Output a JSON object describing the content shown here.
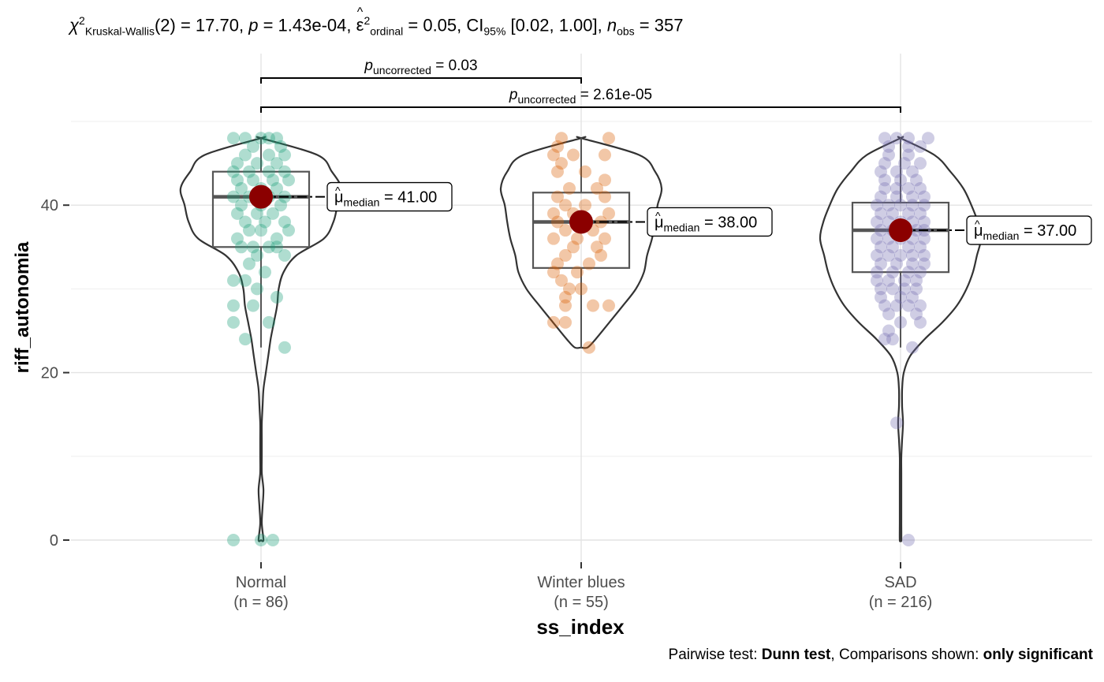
{
  "subtitle": {
    "chi": "χ",
    "chi_sup": "2",
    "test_sub": "Kruskal-Wallis",
    "stat": "(2) = 17.70, ",
    "p_sym": "p",
    "p_val": " = 1.43e-04, ",
    "eps": "ε",
    "eps_sup": "2",
    "eps_sub": "ordinal",
    "eps_val": " = 0.05, CI",
    "ci_sub": "95%",
    "ci_val": " [0.02, 1.00], ",
    "n_sym": "n",
    "n_sub": "obs",
    "n_val": " = 357"
  },
  "caption": {
    "prefix": "Pairwise test: ",
    "test": "Dunn test",
    "mid": ", Comparisons shown: ",
    "shown": "only significant"
  },
  "axes": {
    "ylabel": "riff_autonomia",
    "xlabel": "ss_index"
  },
  "chart_data": {
    "type": "violin-box-scatter",
    "x_label": "ss_index",
    "y_label": "riff_autonomia",
    "ylim": [
      0,
      50
    ],
    "y_ticks": [
      0,
      20,
      40
    ],
    "y_tick_labels": [
      "0",
      "20",
      "40"
    ],
    "grid": true,
    "categories": [
      {
        "name": "Normal",
        "n_label": "(n = 86)",
        "color": "#1B9E77",
        "median": 41,
        "q1": 35,
        "q3": 44,
        "whisker_low": 23,
        "whisker_high": 48,
        "label": "41.00",
        "violin": [
          [
            0,
            3
          ],
          [
            2,
            1
          ],
          [
            4,
            2
          ],
          [
            6,
            3
          ],
          [
            8,
            1
          ],
          [
            10,
            1
          ],
          [
            12,
            1
          ],
          [
            14,
            1
          ],
          [
            16,
            2
          ],
          [
            18,
            3
          ],
          [
            20,
            6
          ],
          [
            22,
            9
          ],
          [
            24,
            12
          ],
          [
            26,
            16
          ],
          [
            28,
            20
          ],
          [
            30,
            22
          ],
          [
            32,
            28
          ],
          [
            34,
            44
          ],
          [
            36,
            78
          ],
          [
            38,
            90
          ],
          [
            40,
            95
          ],
          [
            42,
            100
          ],
          [
            44,
            88
          ],
          [
            46,
            70
          ],
          [
            48,
            0
          ]
        ],
        "points": [
          [
            0,
            -0.07
          ],
          [
            0,
            0.0
          ],
          [
            0,
            0.03
          ],
          [
            23,
            0.06
          ],
          [
            24,
            -0.04
          ],
          [
            26,
            -0.07
          ],
          [
            26,
            0.02
          ],
          [
            28,
            -0.07
          ],
          [
            28,
            -0.02
          ],
          [
            29,
            0.04
          ],
          [
            30,
            -0.01
          ],
          [
            31,
            -0.07
          ],
          [
            31,
            -0.04
          ],
          [
            32,
            0.01
          ],
          [
            33,
            -0.03
          ],
          [
            34,
            -0.01
          ],
          [
            34,
            0.06
          ],
          [
            35,
            -0.05
          ],
          [
            35,
            -0.02
          ],
          [
            35,
            0.02
          ],
          [
            35,
            0.04
          ],
          [
            36,
            -0.06
          ],
          [
            36,
            0.04
          ],
          [
            37,
            -0.03
          ],
          [
            37,
            0.0
          ],
          [
            37,
            0.07
          ],
          [
            38,
            -0.04
          ],
          [
            38,
            0.01
          ],
          [
            38,
            0.06
          ],
          [
            39,
            -0.06
          ],
          [
            39,
            -0.01
          ],
          [
            39,
            0.03
          ],
          [
            40,
            -0.05
          ],
          [
            40,
            0.0
          ],
          [
            40,
            0.05
          ],
          [
            41,
            -0.07
          ],
          [
            41,
            -0.03
          ],
          [
            41,
            0.02
          ],
          [
            41,
            0.06
          ],
          [
            42,
            -0.05
          ],
          [
            42,
            0.0
          ],
          [
            42,
            0.04
          ],
          [
            43,
            -0.06
          ],
          [
            43,
            -0.02
          ],
          [
            43,
            0.03
          ],
          [
            43,
            0.07
          ],
          [
            44,
            -0.07
          ],
          [
            44,
            -0.03
          ],
          [
            44,
            0.02
          ],
          [
            44,
            0.06
          ],
          [
            45,
            -0.06
          ],
          [
            45,
            -0.01
          ],
          [
            45,
            0.04
          ],
          [
            46,
            -0.04
          ],
          [
            46,
            0.02
          ],
          [
            46,
            0.06
          ],
          [
            47,
            -0.02
          ],
          [
            47,
            0.05
          ],
          [
            48,
            -0.07
          ],
          [
            48,
            -0.04
          ],
          [
            48,
            0.0
          ],
          [
            48,
            0.02
          ],
          [
            48,
            0.04
          ]
        ]
      },
      {
        "name": "Winter blues",
        "n_label": "(n = 55)",
        "color": "#D95F02",
        "median": 38,
        "q1": 32.5,
        "q3": 41.5,
        "whisker_low": 23,
        "whisker_high": 48,
        "label": "38.00",
        "violin": [
          [
            23,
            8
          ],
          [
            24,
            18
          ],
          [
            26,
            35
          ],
          [
            28,
            52
          ],
          [
            30,
            68
          ],
          [
            32,
            78
          ],
          [
            34,
            82
          ],
          [
            36,
            88
          ],
          [
            38,
            92
          ],
          [
            40,
            95
          ],
          [
            42,
            100
          ],
          [
            44,
            92
          ],
          [
            46,
            72
          ],
          [
            48,
            0
          ]
        ],
        "points": [
          [
            23,
            0.02
          ],
          [
            26,
            -0.07
          ],
          [
            26,
            -0.04
          ],
          [
            28,
            -0.04
          ],
          [
            28,
            0.03
          ],
          [
            28,
            0.07
          ],
          [
            29,
            -0.04
          ],
          [
            30,
            -0.03
          ],
          [
            30,
            0.0
          ],
          [
            31,
            -0.05
          ],
          [
            32,
            -0.07
          ],
          [
            32,
            -0.01
          ],
          [
            33,
            -0.06
          ],
          [
            33,
            0.02
          ],
          [
            34,
            -0.04
          ],
          [
            34,
            0.05
          ],
          [
            35,
            -0.02
          ],
          [
            35,
            0.04
          ],
          [
            36,
            -0.07
          ],
          [
            36,
            -0.01
          ],
          [
            36,
            0.06
          ],
          [
            37,
            -0.04
          ],
          [
            37,
            0.03
          ],
          [
            38,
            -0.06
          ],
          [
            38,
            0.0
          ],
          [
            38,
            0.05
          ],
          [
            39,
            -0.07
          ],
          [
            39,
            -0.02
          ],
          [
            39,
            0.07
          ],
          [
            40,
            -0.04
          ],
          [
            40,
            0.01
          ],
          [
            41,
            -0.06
          ],
          [
            41,
            0.06
          ],
          [
            42,
            -0.03
          ],
          [
            42,
            0.04
          ],
          [
            43,
            0.06
          ],
          [
            44,
            -0.06
          ],
          [
            44,
            0.01
          ],
          [
            45,
            -0.05
          ],
          [
            46,
            -0.07
          ],
          [
            46,
            -0.02
          ],
          [
            46,
            0.06
          ],
          [
            47,
            -0.06
          ],
          [
            48,
            -0.05
          ],
          [
            48,
            0.07
          ]
        ]
      },
      {
        "name": "SAD",
        "n_label": "(n = 216)",
        "color": "#7570B3",
        "median": 37,
        "q1": 32,
        "q3": 40.3,
        "whisker_low": 23,
        "whisker_high": 48,
        "label": "37.00",
        "violin": [
          [
            0,
            1
          ],
          [
            2,
            1
          ],
          [
            4,
            1
          ],
          [
            6,
            1
          ],
          [
            8,
            1
          ],
          [
            10,
            1
          ],
          [
            12,
            2
          ],
          [
            14,
            3
          ],
          [
            16,
            2
          ],
          [
            18,
            2
          ],
          [
            20,
            4
          ],
          [
            22,
            12
          ],
          [
            24,
            30
          ],
          [
            26,
            52
          ],
          [
            28,
            70
          ],
          [
            30,
            82
          ],
          [
            32,
            90
          ],
          [
            34,
            95
          ],
          [
            36,
            100
          ],
          [
            38,
            96
          ],
          [
            40,
            88
          ],
          [
            42,
            78
          ],
          [
            44,
            62
          ],
          [
            46,
            42
          ],
          [
            48,
            0
          ]
        ],
        "points": [
          [
            0,
            0.02
          ],
          [
            14,
            -0.01
          ],
          [
            23,
            0.03
          ],
          [
            24,
            -0.04
          ],
          [
            24,
            -0.02
          ],
          [
            25,
            -0.03
          ],
          [
            26,
            0.0
          ],
          [
            26,
            0.05
          ],
          [
            27,
            -0.03
          ],
          [
            27,
            0.04
          ],
          [
            28,
            -0.04
          ],
          [
            28,
            -0.01
          ],
          [
            28,
            0.02
          ],
          [
            28,
            0.05
          ],
          [
            29,
            -0.05
          ],
          [
            29,
            0.0
          ],
          [
            29,
            0.03
          ],
          [
            30,
            -0.05
          ],
          [
            30,
            -0.02
          ],
          [
            30,
            0.01
          ],
          [
            30,
            0.04
          ],
          [
            31,
            -0.06
          ],
          [
            31,
            -0.03
          ],
          [
            31,
            0.01
          ],
          [
            31,
            0.04
          ],
          [
            32,
            -0.06
          ],
          [
            32,
            -0.02
          ],
          [
            32,
            0.02
          ],
          [
            32,
            0.05
          ],
          [
            33,
            -0.05
          ],
          [
            33,
            -0.01
          ],
          [
            33,
            0.03
          ],
          [
            33,
            0.06
          ],
          [
            34,
            -0.06
          ],
          [
            34,
            -0.03
          ],
          [
            34,
            0.0
          ],
          [
            34,
            0.03
          ],
          [
            34,
            0.06
          ],
          [
            35,
            -0.05
          ],
          [
            35,
            -0.02
          ],
          [
            35,
            0.02
          ],
          [
            35,
            0.05
          ],
          [
            36,
            -0.06
          ],
          [
            36,
            -0.03
          ],
          [
            36,
            0.0
          ],
          [
            36,
            0.03
          ],
          [
            36,
            0.06
          ],
          [
            37,
            -0.05
          ],
          [
            37,
            -0.02
          ],
          [
            37,
            0.01
          ],
          [
            37,
            0.04
          ],
          [
            37,
            0.06
          ],
          [
            38,
            -0.06
          ],
          [
            38,
            -0.03
          ],
          [
            38,
            0.0
          ],
          [
            38,
            0.03
          ],
          [
            38,
            0.06
          ],
          [
            39,
            -0.05
          ],
          [
            39,
            -0.02
          ],
          [
            39,
            0.02
          ],
          [
            39,
            0.05
          ],
          [
            40,
            -0.06
          ],
          [
            40,
            -0.03
          ],
          [
            40,
            0.0
          ],
          [
            40,
            0.03
          ],
          [
            40,
            0.06
          ],
          [
            41,
            -0.05
          ],
          [
            41,
            -0.01
          ],
          [
            41,
            0.03
          ],
          [
            41,
            0.06
          ],
          [
            42,
            -0.04
          ],
          [
            42,
            -0.01
          ],
          [
            42,
            0.02
          ],
          [
            42,
            0.05
          ],
          [
            43,
            -0.04
          ],
          [
            43,
            0.0
          ],
          [
            43,
            0.04
          ],
          [
            44,
            -0.05
          ],
          [
            44,
            -0.01
          ],
          [
            44,
            0.03
          ],
          [
            45,
            -0.04
          ],
          [
            45,
            0.01
          ],
          [
            45,
            0.05
          ],
          [
            46,
            -0.03
          ],
          [
            46,
            0.02
          ],
          [
            47,
            -0.03
          ],
          [
            47,
            0.02
          ],
          [
            47,
            0.05
          ],
          [
            48,
            -0.04
          ],
          [
            48,
            -0.01
          ],
          [
            48,
            0.02
          ],
          [
            48,
            0.07
          ]
        ]
      }
    ],
    "comparisons": [
      {
        "group1": "Normal",
        "group2": "Winter blues",
        "p_sym": "p",
        "p_sub": "uncorrected",
        "p_val": " = 0.03"
      },
      {
        "group1": "Normal",
        "group2": "SAD",
        "p_sym": "p",
        "p_sub": "uncorrected",
        "p_val": " = 2.61e-05"
      }
    ],
    "median_label_prefix": "μ",
    "median_label_sub": "median",
    "median_marker_color": "#8B0000"
  }
}
